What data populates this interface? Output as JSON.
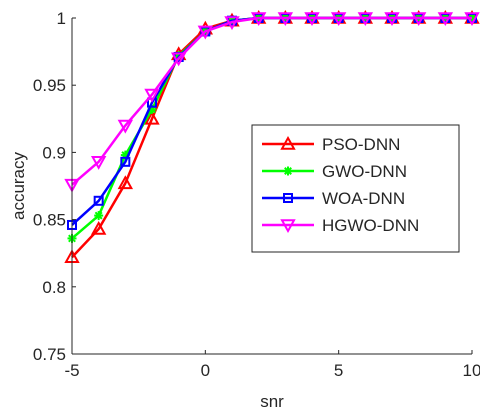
{
  "chart_data": {
    "type": "line",
    "title": "",
    "xlabel": "snr",
    "ylabel": "accuracy",
    "xlim": [
      -5,
      10
    ],
    "ylim": [
      0.75,
      1
    ],
    "xticks": [
      -5,
      0,
      5,
      10
    ],
    "yticks": [
      0.75,
      0.8,
      0.85,
      0.9,
      0.95,
      1
    ],
    "xtick_labels": [
      "-5",
      "0",
      "5",
      "10"
    ],
    "ytick_labels": [
      "0.75",
      "0.8",
      "0.85",
      "0.9",
      "0.95",
      "1"
    ],
    "grid": false,
    "legend_position": "center-right",
    "x": [
      -5,
      -4,
      -3,
      -2,
      -1,
      0,
      1,
      2,
      3,
      4,
      5,
      6,
      7,
      8,
      9,
      10
    ],
    "series": [
      {
        "name": "PSO-DNN",
        "color": "#ff0000",
        "marker": "triangle-up",
        "values": [
          0.822,
          0.843,
          0.877,
          0.925,
          0.973,
          0.992,
          0.998,
          1,
          1,
          1,
          1,
          1,
          1,
          1,
          1,
          1
        ]
      },
      {
        "name": "GWO-DNN",
        "color": "#00ff00",
        "marker": "asterisk",
        "values": [
          0.836,
          0.853,
          0.898,
          0.932,
          0.972,
          0.99,
          0.998,
          1,
          1,
          1,
          1,
          1,
          1,
          1,
          1,
          1
        ]
      },
      {
        "name": "WOA-DNN",
        "color": "#0000ff",
        "marker": "square",
        "values": [
          0.846,
          0.864,
          0.893,
          0.937,
          0.971,
          0.99,
          0.998,
          1,
          1,
          1,
          1,
          1,
          1,
          1,
          1,
          1
        ]
      },
      {
        "name": "HGWO-DNN",
        "color": "#ff00ff",
        "marker": "triangle-down",
        "values": [
          0.876,
          0.893,
          0.92,
          0.943,
          0.97,
          0.99,
          0.997,
          1,
          1,
          1,
          1,
          1,
          1,
          1,
          1,
          1
        ]
      }
    ]
  }
}
